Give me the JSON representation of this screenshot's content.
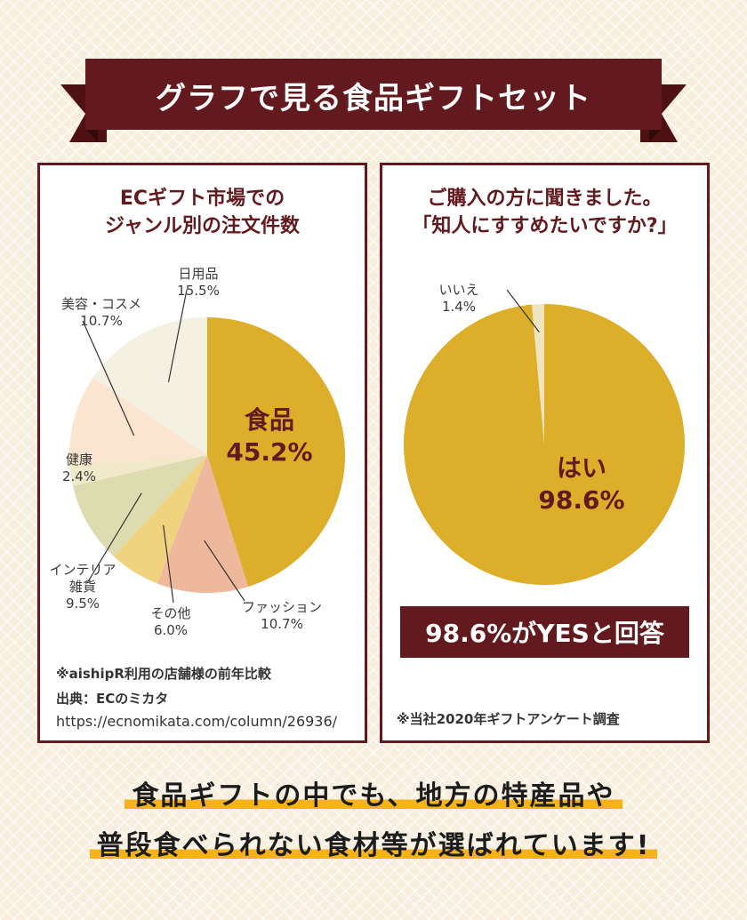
{
  "title": "グラフで見る食品ギフトセット",
  "left_panel": {
    "title_lines": [
      "ECギフト市場での",
      "ジャンル別の注文件数"
    ],
    "notes": [
      "※aishipR利用の店舗様の前年比較",
      "出典：ECのミカタ",
      "https://ecnomikata.com/column/26936/"
    ]
  },
  "right_panel": {
    "title_lines": [
      "ご購入の方に聞きました。",
      "「知人にすすめたいですか?」"
    ],
    "answer_box": "98.6%がYESと回答",
    "note": "※当社2020年ギフトアンケート調査"
  },
  "bottom": {
    "line1": "食品ギフトの中でも、地方の特産品や",
    "line2": "普段食べられない食材等が選ばれています!"
  },
  "chart_data": [
    {
      "type": "pie",
      "title": "ECギフト市場での ジャンル別の注文件数",
      "slices": [
        {
          "label": "食品",
          "value": 45.2,
          "value_label": "45.2%",
          "color": "#dcae29"
        },
        {
          "label": "ファッション",
          "value": 10.7,
          "value_label": "10.7%",
          "color": "#edb89b"
        },
        {
          "label": "その他",
          "value": 6.0,
          "value_label": "6.0%",
          "color": "#efd37f"
        },
        {
          "label": "インテリア 雑貨",
          "value": 9.5,
          "value_label": "9.5%",
          "color": "#dcdcb0"
        },
        {
          "label": "健康",
          "value": 2.4,
          "value_label": "2.4%",
          "color": "#f2e9cb"
        },
        {
          "label": "美容・コスメ",
          "value": 10.7,
          "value_label": "10.7%",
          "color": "#fbe4d0"
        },
        {
          "label": "日用品",
          "value": 15.5,
          "value_label": "15.5%",
          "color": "#f4f1e2"
        }
      ]
    },
    {
      "type": "pie",
      "title": "ご購入の方に聞きました。「知人にすすめたいですか?」",
      "slices": [
        {
          "label": "はい",
          "value": 98.6,
          "value_label": "98.6%",
          "color": "#dcae29"
        },
        {
          "label": "いいえ",
          "value": 1.4,
          "value_label": "1.4%",
          "color": "#efe4bf"
        }
      ]
    }
  ]
}
